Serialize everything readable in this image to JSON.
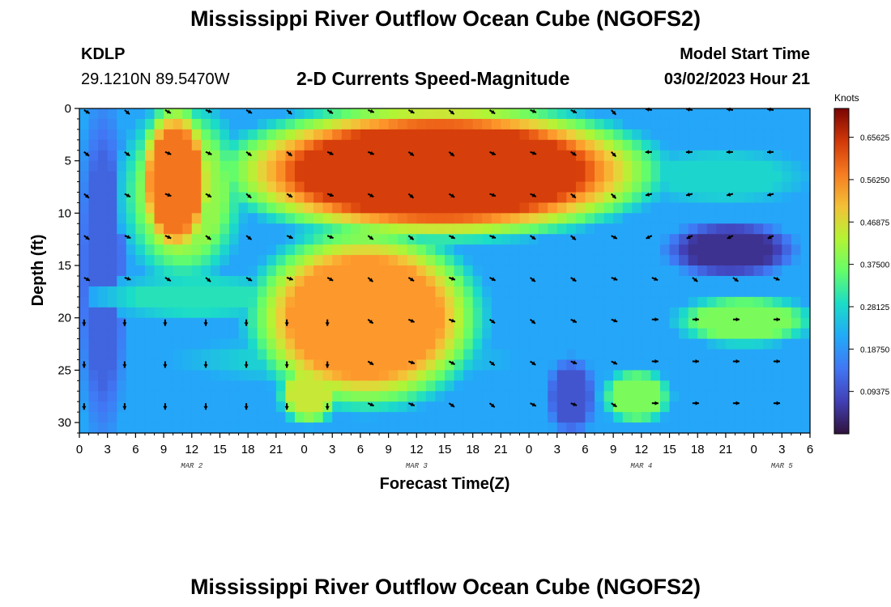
{
  "title": "Mississippi River Outflow Ocean Cube (NGOFS2)",
  "station": {
    "id": "KDLP",
    "coords": "29.1210N  89.5470W"
  },
  "subtitle": "2-D Currents Speed-Magnitude",
  "model_start": {
    "label": "Model Start Time",
    "value": "03/02/2023 Hour 21"
  },
  "footer_title": "Mississippi River Outflow Ocean Cube (NGOFS2)",
  "chart_data": {
    "type": "heatmap",
    "title": "2-D Currents Speed-Magnitude",
    "xlabel": "Forecast Time(Z)",
    "ylabel": "Depth (ft)",
    "x_range_hours": [
      0,
      78
    ],
    "y_range_ft": [
      0,
      31
    ],
    "x_ticks": [
      {
        "h": 0,
        "label": "0"
      },
      {
        "h": 3,
        "label": "3"
      },
      {
        "h": 6,
        "label": "6"
      },
      {
        "h": 9,
        "label": "9"
      },
      {
        "h": 12,
        "label": "12"
      },
      {
        "h": 15,
        "label": "15"
      },
      {
        "h": 18,
        "label": "18"
      },
      {
        "h": 21,
        "label": "21"
      },
      {
        "h": 24,
        "label": "0"
      },
      {
        "h": 27,
        "label": "3"
      },
      {
        "h": 30,
        "label": "6"
      },
      {
        "h": 33,
        "label": "9"
      },
      {
        "h": 36,
        "label": "12"
      },
      {
        "h": 39,
        "label": "15"
      },
      {
        "h": 42,
        "label": "18"
      },
      {
        "h": 45,
        "label": "21"
      },
      {
        "h": 48,
        "label": "0"
      },
      {
        "h": 51,
        "label": "3"
      },
      {
        "h": 54,
        "label": "6"
      },
      {
        "h": 57,
        "label": "9"
      },
      {
        "h": 60,
        "label": "12"
      },
      {
        "h": 63,
        "label": "15"
      },
      {
        "h": 66,
        "label": "18"
      },
      {
        "h": 69,
        "label": "21"
      },
      {
        "h": 72,
        "label": "0"
      },
      {
        "h": 75,
        "label": "3"
      },
      {
        "h": 78,
        "label": "6"
      }
    ],
    "date_labels": [
      {
        "h": 12,
        "label": "MAR 2"
      },
      {
        "h": 36,
        "label": "MAR 3"
      },
      {
        "h": 60,
        "label": "MAR 4"
      },
      {
        "h": 75,
        "label": "MAR 5"
      }
    ],
    "y_ticks": [
      0,
      5,
      10,
      15,
      20,
      25,
      30
    ],
    "colorbar": {
      "unit_label": "Knots",
      "range": [
        0.0,
        0.72
      ],
      "tick_values": [
        0.65625,
        0.5625,
        0.46875,
        0.375,
        0.28125,
        0.1875,
        0.09375
      ],
      "tick_labels": [
        "0.65625",
        "0.56250",
        "0.46875",
        "0.37500",
        "0.28125",
        "0.18750",
        "0.09375"
      ]
    },
    "speed_regions": [
      {
        "name": "background",
        "value": 0.21
      },
      {
        "name": "left-edge-low",
        "h": [
          0,
          5
        ],
        "d": [
          0,
          31
        ],
        "value": 0.12
      },
      {
        "name": "plume-mar2-core",
        "h": [
          6.5,
          14
        ],
        "d": [
          0,
          14
        ],
        "value": 0.58
      },
      {
        "name": "plume-mar2-shoulder",
        "h": [
          5,
          17
        ],
        "d": [
          0,
          16
        ],
        "value": 0.4
      },
      {
        "name": "band-16-20ft",
        "h": [
          3,
          22
        ],
        "d": [
          16,
          20
        ],
        "value": 0.3
      },
      {
        "name": "band-22-26ft",
        "h": [
          12,
          44
        ],
        "d": [
          22,
          26
        ],
        "value": 0.27
      },
      {
        "name": "blob-mar3-early",
        "h": [
          21.5,
          27.5
        ],
        "d": [
          24.5,
          30
        ],
        "value": 0.45
      },
      {
        "name": "main-plume-core",
        "h": [
          17,
          60
        ],
        "d": [
          0,
          12
        ],
        "value": 0.64
      },
      {
        "name": "main-plume-lower",
        "h": [
          19,
          42
        ],
        "d": [
          12,
          28
        ],
        "value": 0.55
      },
      {
        "name": "right-low-pocket",
        "h": [
          63,
          76
        ],
        "d": [
          11,
          16
        ],
        "value": 0.05
      },
      {
        "name": "right-band-20ft",
        "h": [
          64,
          78
        ],
        "d": [
          18,
          22.5
        ],
        "value": 0.38
      },
      {
        "name": "blob-mar4",
        "h": [
          56,
          63
        ],
        "d": [
          25,
          30
        ],
        "value": 0.38
      },
      {
        "name": "upper-right-green",
        "h": [
          60,
          77
        ],
        "d": [
          4,
          9
        ],
        "value": 0.28
      },
      {
        "name": "deep-right-low",
        "h": [
          50,
          55
        ],
        "d": [
          24,
          31
        ],
        "value": 0.1
      }
    ]
  }
}
